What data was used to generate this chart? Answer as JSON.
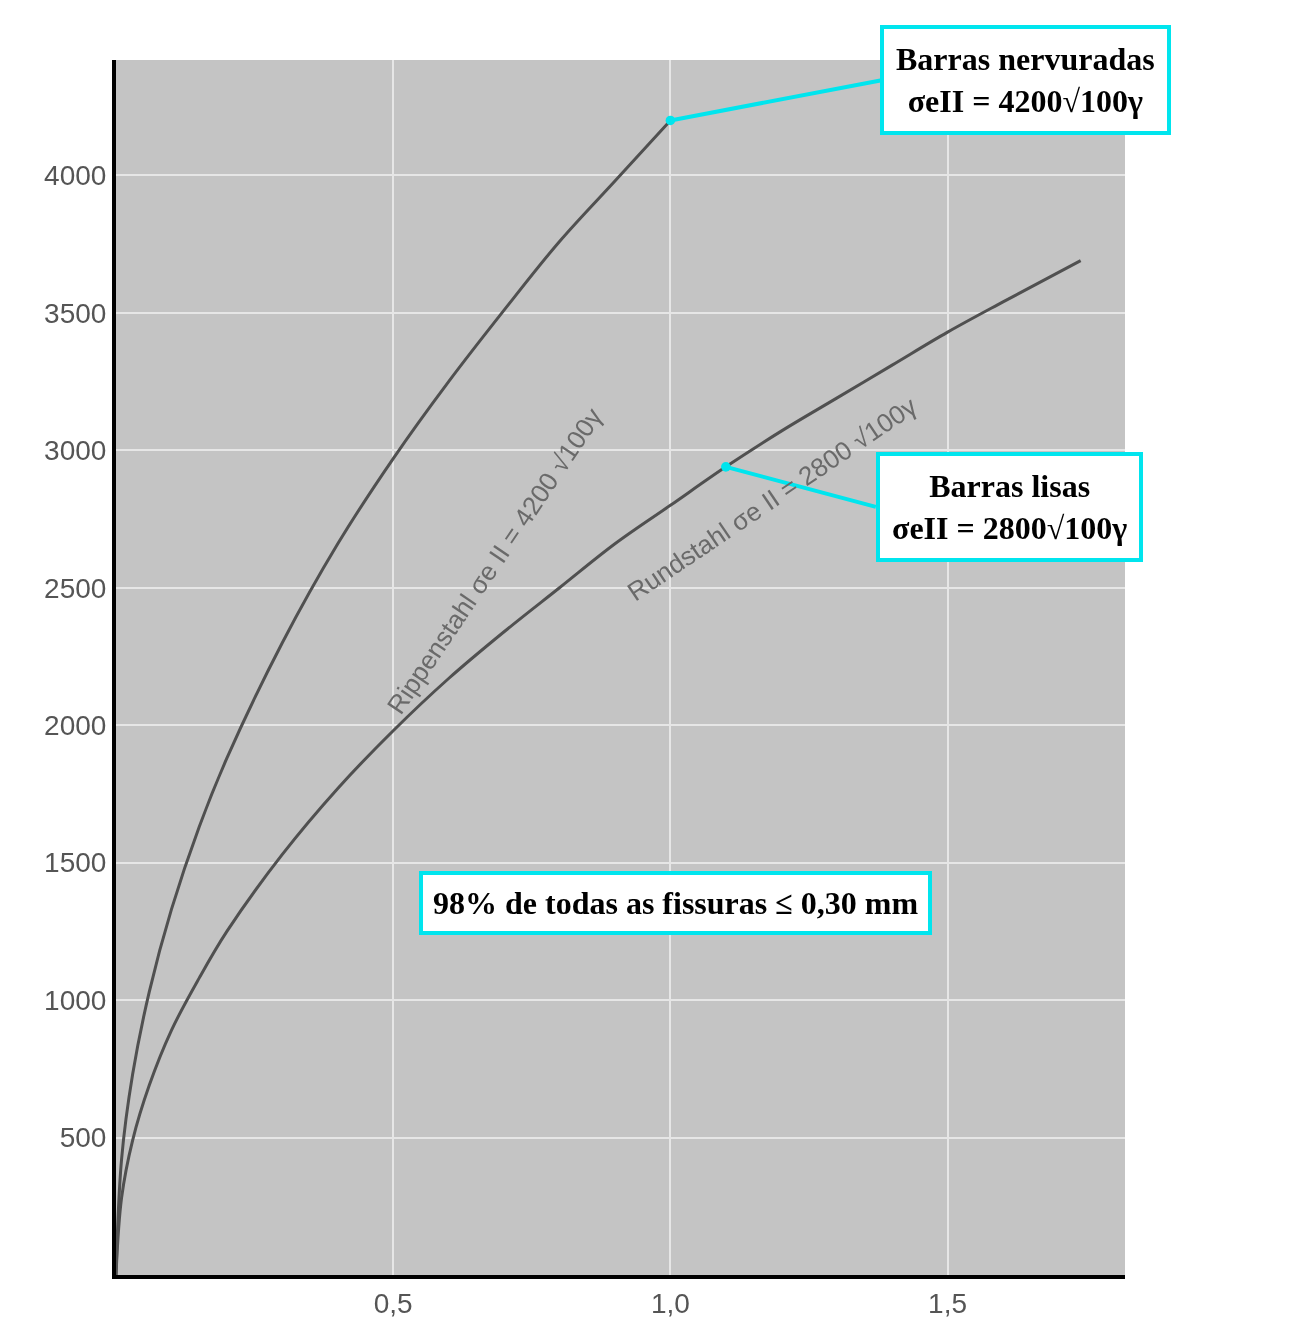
{
  "chart_data": {
    "type": "line",
    "xlim": [
      0,
      1.82
    ],
    "ylim": [
      0,
      4420
    ],
    "xticks": [
      {
        "value": 0.5,
        "label": "0,5"
      },
      {
        "value": 1.0,
        "label": "1,0"
      },
      {
        "value": 1.5,
        "label": "1,5"
      }
    ],
    "yticks": [
      500,
      1000,
      1500,
      2000,
      2500,
      3000,
      3500,
      4000
    ],
    "grid": true,
    "series": [
      {
        "color": "#505050",
        "x": [
          0,
          0.01,
          0.03,
          0.06,
          0.1,
          0.15,
          0.2,
          0.3,
          0.4,
          0.5,
          0.6,
          0.7,
          0.8,
          0.9,
          1.0
        ],
        "values": [
          0,
          420,
          730,
          1030,
          1330,
          1630,
          1880,
          2300,
          2660,
          2970,
          3250,
          3510,
          3760,
          3980,
          4200
        ]
      },
      {
        "color": "#505050",
        "x": [
          0,
          0.01,
          0.03,
          0.06,
          0.1,
          0.15,
          0.2,
          0.3,
          0.4,
          0.5,
          0.6,
          0.7,
          0.8,
          0.9,
          1.0,
          1.1,
          1.2,
          1.3,
          1.4,
          1.5,
          1.6,
          1.74
        ],
        "values": [
          0,
          280,
          490,
          690,
          890,
          1080,
          1250,
          1530,
          1770,
          1980,
          2170,
          2340,
          2500,
          2660,
          2800,
          2940,
          3070,
          3190,
          3310,
          3430,
          3540,
          3690
        ]
      }
    ],
    "annotations": [
      {
        "text": "Barras nervuradas\nσeII = 4200√100γ",
        "x": 1.0,
        "y": 4200
      },
      {
        "text": "Barras lisas\nσeII = 2800√100γ",
        "x": 1.1,
        "y": 2940
      },
      "Rippenstahl σe II = 4200 √100γ",
      "Rundstahl σe II = 2800 √100γ",
      "98% de todas as fissuras ≤ 0,30 mm"
    ]
  }
}
